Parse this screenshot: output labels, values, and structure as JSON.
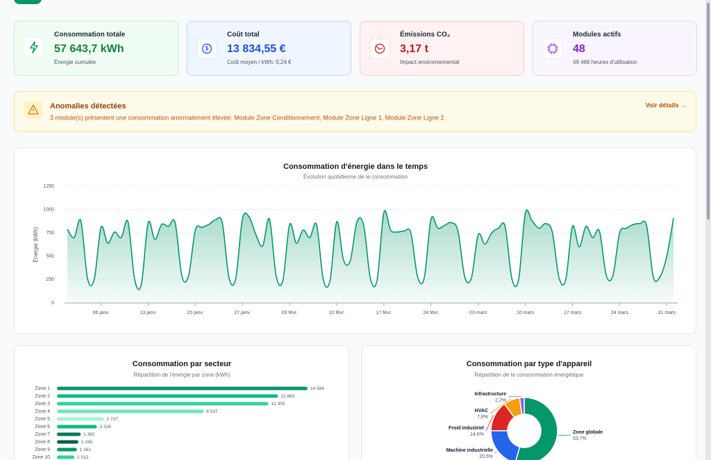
{
  "kpis": [
    {
      "title": "Consommation totale",
      "value": "57 643,7 kWh",
      "sub": "Énergie cumulée"
    },
    {
      "title": "Coût total",
      "value": "13 834,55 €",
      "sub": "Coût moyen / kWh: 0,24 €"
    },
    {
      "title": "Émissions CO₂",
      "value": "3,17 t",
      "sub": "Impact environnemental"
    },
    {
      "title": "Modules actifs",
      "value": "48",
      "sub": "49 466 heures d'utilisation"
    }
  ],
  "alert": {
    "title": "Anomalies détectées",
    "message": "3 module(s) présentent une consommation anormalement élevée: Module Zone Conditionnement, Module Zone Ligne 1, Module Zone Ligne 2",
    "action": "Voir détails →"
  },
  "chart_data": [
    {
      "type": "line",
      "title": "Consommation d'énergie dans le temps",
      "subtitle": "Évolution quotidienne de la consommation",
      "y_label": "Énergie (kWh)",
      "color": "#059669",
      "grid": true,
      "ylim": [
        0,
        1250
      ],
      "yticks": [
        0,
        250,
        500,
        750,
        1000,
        1250
      ],
      "categories": [
        null,
        null,
        null,
        null,
        null,
        "06 janv.",
        null,
        null,
        null,
        null,
        null,
        null,
        "13 janv.",
        null,
        null,
        null,
        null,
        null,
        null,
        "20 janv.",
        null,
        null,
        null,
        null,
        null,
        null,
        "27 janv.",
        null,
        null,
        null,
        null,
        null,
        null,
        "03 févr.",
        null,
        null,
        null,
        null,
        null,
        null,
        "10 févr.",
        null,
        null,
        null,
        null,
        null,
        null,
        "17 févr.",
        null,
        null,
        null,
        null,
        null,
        null,
        "24 févr.",
        null,
        null,
        null,
        null,
        null,
        null,
        "03 mars",
        null,
        null,
        null,
        null,
        null,
        null,
        "10 mars",
        null,
        null,
        null,
        null,
        null,
        null,
        "17 mars",
        null,
        null,
        null,
        null,
        null,
        null,
        "24 mars",
        null,
        null,
        null,
        null,
        null,
        null,
        "31 mars",
        null
      ],
      "values": [
        790,
        700,
        880,
        260,
        255,
        810,
        640,
        760,
        700,
        870,
        250,
        205,
        860,
        680,
        840,
        820,
        860,
        290,
        290,
        780,
        810,
        840,
        890,
        860,
        270,
        260,
        900,
        920,
        730,
        610,
        900,
        290,
        240,
        840,
        640,
        780,
        700,
        840,
        250,
        240,
        870,
        460,
        450,
        870,
        830,
        260,
        250,
        970,
        780,
        760,
        770,
        750,
        280,
        270,
        900,
        800,
        830,
        860,
        770,
        280,
        270,
        730,
        630,
        750,
        800,
        820,
        260,
        250,
        960,
        880,
        800,
        850,
        760,
        270,
        250,
        820,
        600,
        820,
        700,
        770,
        300,
        290,
        750,
        800,
        840,
        850,
        830,
        280,
        280,
        500,
        910
      ]
    },
    {
      "type": "hbar",
      "title": "Consommation par secteur",
      "subtitle": "Répartition de l'énergie par zone (kWh)",
      "categories": [
        "Zone 1",
        "Zone 2",
        "Zone 3",
        "Zone 4",
        "Zone 5",
        "Zone 6",
        "Zone 7",
        "Zone 8",
        "Zone 9",
        "Zone 10"
      ],
      "values": [
        14584,
        12863,
        12305,
        8537,
        2737,
        2326,
        1382,
        1245,
        1161,
        1012
      ],
      "value_labels": [
        "14 584",
        "12 863",
        "12 305",
        "8 537",
        "2 737",
        "2 326",
        "1 382",
        "1 245",
        "1 161",
        "1 012"
      ],
      "colors": [
        "#059669",
        "#10b981",
        "#34d399",
        "#6ee7b7",
        "#a7f3d0",
        "#10b981",
        "#047857",
        "#065f46",
        "#059669",
        "#34d399"
      ],
      "xlim": [
        0,
        16000
      ]
    },
    {
      "type": "donut",
      "title": "Consommation par type d'appareil",
      "subtitle": "Répartition de la consommation énergétique",
      "categories": [
        "Zone globale",
        "Machine industrielle",
        "Froid industriel",
        "HVAC",
        "Infrastructure"
      ],
      "values": [
        53.7,
        20.5,
        14.6,
        7.8,
        2.2
      ],
      "value_labels": [
        "53,7%",
        "20,5%",
        "14,6%",
        "7,8%",
        "2,2%"
      ],
      "colors": [
        "#059669",
        "#2563eb",
        "#dc2626",
        "#f59e0b",
        "#8b5cf6"
      ]
    }
  ]
}
